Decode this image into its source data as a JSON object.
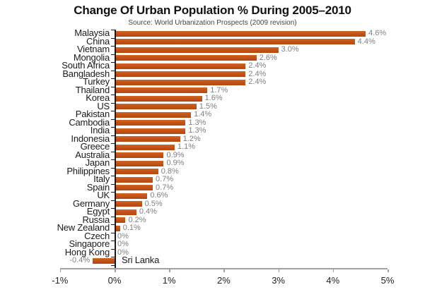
{
  "page": {
    "background": "#ffffff"
  },
  "chart_data": {
    "type": "bar",
    "orientation": "horizontal",
    "title": "Change Of Urban Population % During 2005–2010",
    "subtitle": "Source: World Urbanization Prospects (2009 revision)",
    "categories": [
      "Malaysia",
      "China",
      "Vietnam",
      "Mongolia",
      "South Africa",
      "Bangladesh",
      "Turkey",
      "Thailand",
      "Korea",
      "US",
      "Pakistan",
      "Cambodia",
      "India",
      "Indonesia",
      "Greece",
      "Australia",
      "Japan",
      "Philippines",
      "Italy",
      "Spain",
      "UK",
      "Germany",
      "Egypt",
      "Russia",
      "New Zealand",
      "Czech",
      "Singapore",
      "Hong Kong",
      "Sri Lanka"
    ],
    "values": [
      4.6,
      4.4,
      3.0,
      2.6,
      2.4,
      2.4,
      2.4,
      1.7,
      1.6,
      1.5,
      1.4,
      1.3,
      1.3,
      1.2,
      1.1,
      0.9,
      0.9,
      0.8,
      0.7,
      0.7,
      0.6,
      0.5,
      0.4,
      0.2,
      0.1,
      0,
      0,
      0,
      -0.4
    ],
    "value_labels": [
      "4.6%",
      "4.4%",
      "3.0%",
      "2.6%",
      "2.4%",
      "2.4%",
      "2.4%",
      "1.7%",
      "1.6%",
      "1.5%",
      "1.4%",
      "1.3%",
      "1.3%",
      "1.2%",
      "1.1%",
      "0.9%",
      "0.9%",
      "0.8%",
      "0.7%",
      "0.7%",
      "0.6%",
      "0.5%",
      "0.4%",
      "0.2%",
      "0.1%",
      "0%",
      "0%",
      "0%",
      "-0.4%"
    ],
    "xlabel": "",
    "ylabel": "",
    "xlim": [
      -1,
      5
    ],
    "x_ticks": [
      {
        "value": -1,
        "label": "-1%"
      },
      {
        "value": 0,
        "label": "0%"
      },
      {
        "value": 1,
        "label": "1%"
      },
      {
        "value": 2,
        "label": "2%"
      },
      {
        "value": 3,
        "label": "3%"
      },
      {
        "value": 4,
        "label": "4%"
      },
      {
        "value": 5,
        "label": "5%"
      }
    ],
    "grid": false,
    "legend": false,
    "colors": {
      "bar": "#C4531B",
      "bar_light": "#D0641F",
      "bar_dark": "#B2490F",
      "value_label": "#7F7F7F",
      "category_label": "#1A1A1A",
      "x_axis_line": "#A0A0A0",
      "y_axis_line": "#1A1A1A"
    }
  }
}
